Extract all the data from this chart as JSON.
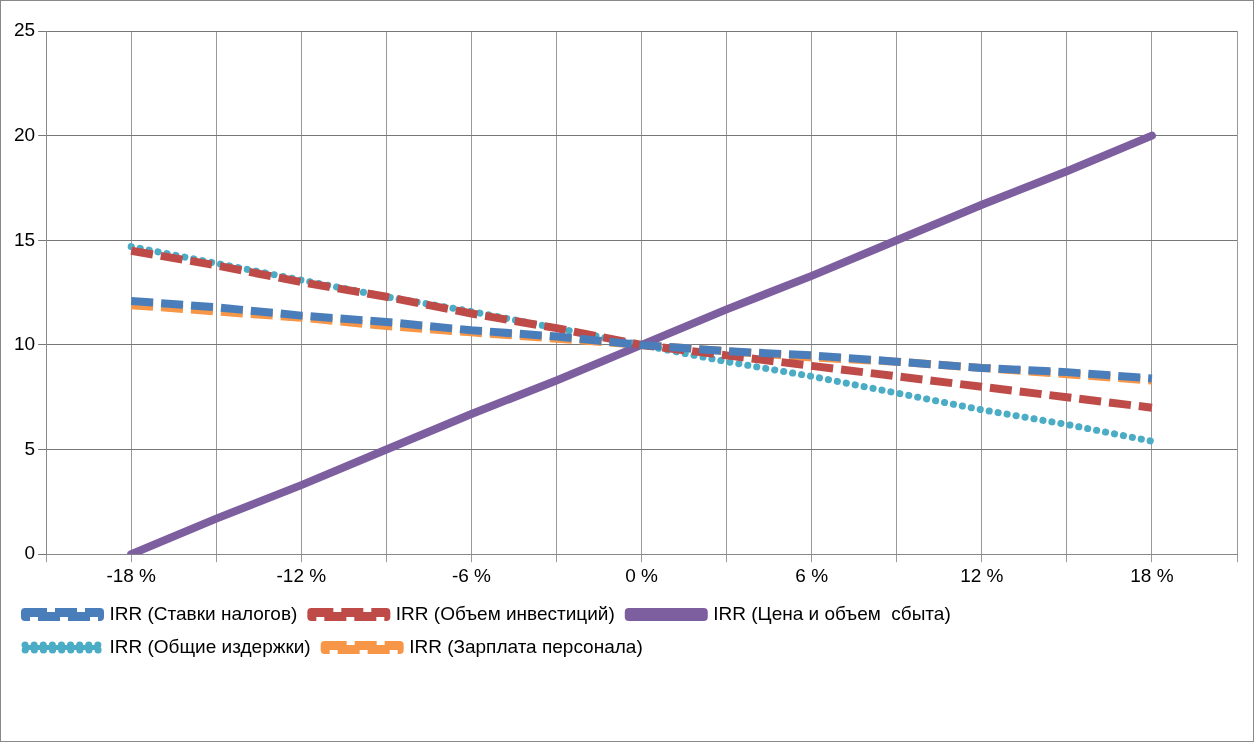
{
  "chart_data": {
    "type": "line",
    "x": [
      -18,
      -15,
      -12,
      -9,
      -6,
      -3,
      0,
      3,
      6,
      9,
      12,
      15,
      18
    ],
    "xlim": [
      -21,
      21
    ],
    "xticks": [
      {
        "value": -21,
        "label": null
      },
      {
        "value": -18,
        "label": "-18 %"
      },
      {
        "value": -15,
        "label": null
      },
      {
        "value": -12,
        "label": "-12 %"
      },
      {
        "value": -9,
        "label": null
      },
      {
        "value": -6,
        "label": "-6 %"
      },
      {
        "value": -3,
        "label": null
      },
      {
        "value": 0,
        "label": "0 %"
      },
      {
        "value": 3,
        "label": null
      },
      {
        "value": 6,
        "label": "6 %"
      },
      {
        "value": 9,
        "label": null
      },
      {
        "value": 12,
        "label": "12 %"
      },
      {
        "value": 15,
        "label": null
      },
      {
        "value": 18,
        "label": "18 %"
      },
      {
        "value": 21,
        "label": null
      }
    ],
    "ylim": [
      0,
      25
    ],
    "yticks": [
      0,
      5,
      10,
      15,
      20,
      25
    ],
    "grid": true,
    "legend": "bottom",
    "marker": "none",
    "series": [
      {
        "name": "IRR (Ставки налогов)",
        "color": "#4a7ebb",
        "line_style": "dashed",
        "values": [
          12.1,
          11.8,
          11.4,
          11.1,
          10.7,
          10.4,
          10.0,
          9.7,
          9.5,
          9.2,
          8.9,
          8.7,
          8.4
        ]
      },
      {
        "name": "IRR (Объем инвестиций)",
        "color": "#be4b48",
        "line_style": "dashed",
        "values": [
          14.5,
          13.8,
          13.0,
          12.3,
          11.5,
          10.8,
          10.0,
          9.5,
          9.0,
          8.5,
          8.0,
          7.5,
          7.0
        ]
      },
      {
        "name": "IRR (Цена и объем  сбыта)",
        "color": "#7d5fa0",
        "line_style": "solid",
        "values": [
          0,
          1.7,
          3.3,
          5.0,
          6.7,
          8.3,
          10.0,
          11.7,
          13.3,
          15.0,
          16.7,
          18.3,
          20.0
        ]
      },
      {
        "name": "IRR (Общие издержки)",
        "color": "#4bacc6",
        "line_style": "dotted",
        "values": [
          14.7,
          13.9,
          13.1,
          12.3,
          11.6,
          10.8,
          10.0,
          9.2,
          8.5,
          7.7,
          6.9,
          6.2,
          5.4
        ]
      },
      {
        "name": "IRR (Зарплата персонала)",
        "color": "#f79646",
        "line_style": "dashed",
        "values": [
          11.9,
          11.6,
          11.3,
          10.9,
          10.6,
          10.3,
          10.0,
          9.7,
          9.4,
          9.2,
          8.9,
          8.6,
          8.3
        ]
      }
    ]
  }
}
